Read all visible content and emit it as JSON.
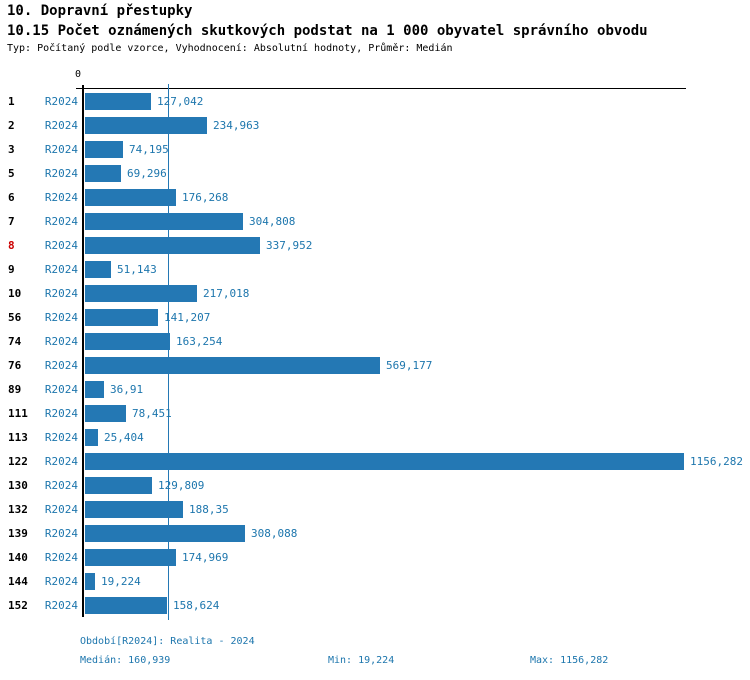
{
  "header": {
    "title": "10. Dopravní přestupky",
    "subtitle": "10.15 Počet oznámených skutkových podstat na 1 000 obyvatel správního obvodu",
    "meta": "Typ: Počítaný podle vzorce, Vyhodnocení: Absolutní hodnoty, Průměr: Medián"
  },
  "colors": {
    "bar": "#2478b4",
    "blue_text": "#1d76ad",
    "highlight_row": "#cc0000",
    "axis": "#000000"
  },
  "chart_data": {
    "type": "bar",
    "orientation": "horizontal",
    "title": "10.15 Počet oznámených skutkových podstat na 1 000 obyvatel správního obvodu",
    "series_label": "R2024",
    "x_axis": {
      "zero_label": "0",
      "min": 0,
      "max": 1156.282,
      "gridlines": false
    },
    "median": {
      "value": 160.939,
      "label": "160,939",
      "line": true
    },
    "rows": [
      {
        "id": "1",
        "value": 127.042,
        "label": "127,042",
        "highlight": false
      },
      {
        "id": "2",
        "value": 234.963,
        "label": "234,963",
        "highlight": false
      },
      {
        "id": "3",
        "value": 74.195,
        "label": "74,195",
        "highlight": false
      },
      {
        "id": "5",
        "value": 69.296,
        "label": "69,296",
        "highlight": false
      },
      {
        "id": "6",
        "value": 176.268,
        "label": "176,268",
        "highlight": false
      },
      {
        "id": "7",
        "value": 304.808,
        "label": "304,808",
        "highlight": false
      },
      {
        "id": "8",
        "value": 337.952,
        "label": "337,952",
        "highlight": true
      },
      {
        "id": "9",
        "value": 51.143,
        "label": "51,143",
        "highlight": false
      },
      {
        "id": "10",
        "value": 217.018,
        "label": "217,018",
        "highlight": false
      },
      {
        "id": "56",
        "value": 141.207,
        "label": "141,207",
        "highlight": false
      },
      {
        "id": "74",
        "value": 163.254,
        "label": "163,254",
        "highlight": false
      },
      {
        "id": "76",
        "value": 569.177,
        "label": "569,177",
        "highlight": false
      },
      {
        "id": "89",
        "value": 36.91,
        "label": "36,91",
        "highlight": false
      },
      {
        "id": "111",
        "value": 78.451,
        "label": "78,451",
        "highlight": false
      },
      {
        "id": "113",
        "value": 25.404,
        "label": "25,404",
        "highlight": false
      },
      {
        "id": "122",
        "value": 1156.282,
        "label": "1156,282",
        "highlight": false
      },
      {
        "id": "130",
        "value": 129.809,
        "label": "129,809",
        "highlight": false
      },
      {
        "id": "132",
        "value": 188.35,
        "label": "188,35",
        "highlight": false
      },
      {
        "id": "139",
        "value": 308.088,
        "label": "308,088",
        "highlight": false
      },
      {
        "id": "140",
        "value": 174.969,
        "label": "174,969",
        "highlight": false
      },
      {
        "id": "144",
        "value": 19.224,
        "label": "19,224",
        "highlight": false
      },
      {
        "id": "152",
        "value": 158.624,
        "label": "158,624",
        "highlight": false
      }
    ]
  },
  "footer": {
    "period": "Období[R2024]: Realita - 2024",
    "median": "Medián: 160,939",
    "min": "Min: 19,224",
    "max": "Max: 1156,282"
  }
}
